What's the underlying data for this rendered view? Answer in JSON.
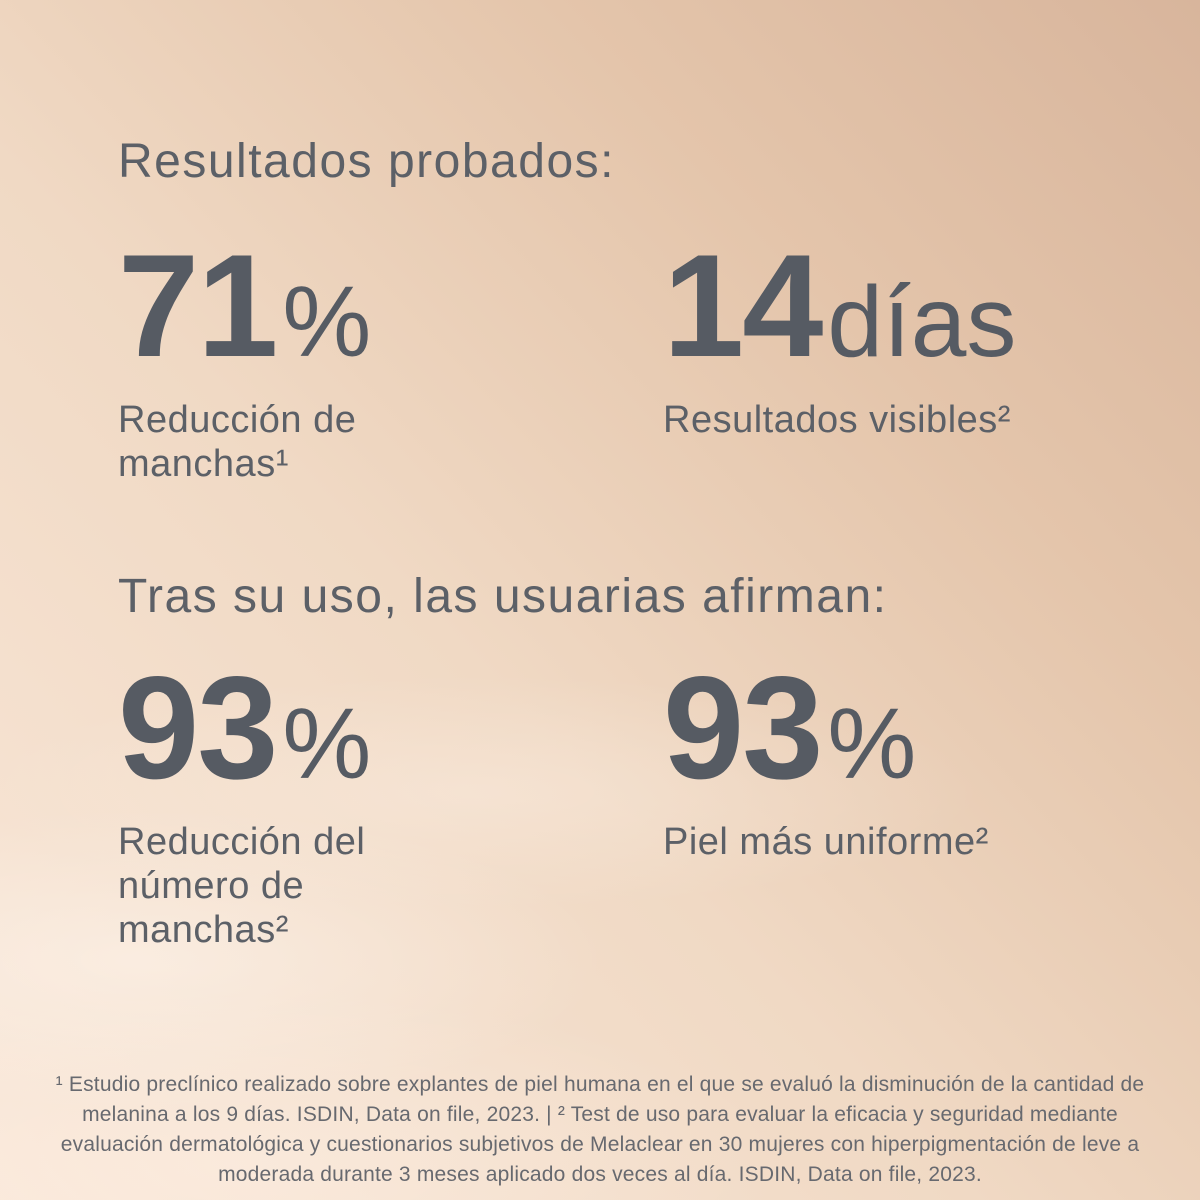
{
  "colors": {
    "text_primary": "#575c64",
    "text_footnote": "#67696f",
    "bg_gradient_dark": "#d8b59c",
    "bg_gradient_light": "#f9e7d8"
  },
  "section_proven": {
    "heading": "Resultados probados:",
    "stats": [
      {
        "value": "71",
        "unit": "%",
        "label": "Reducción de\nmanchas¹"
      },
      {
        "value": "14",
        "unit": "días",
        "label": "Resultados visibles²"
      }
    ]
  },
  "section_users": {
    "heading": "Tras su uso, las usuarias afirman:",
    "stats": [
      {
        "value": "93",
        "unit": "%",
        "label": "Reducción del\nnúmero de\nmanchas²"
      },
      {
        "value": "93",
        "unit": "%",
        "label": "Piel más uniforme²"
      }
    ]
  },
  "footnote": "¹ Estudio preclínico realizado sobre explantes de piel humana en el que se evaluó la disminución de la cantidad de melanina a los 9 días. ISDIN, Data on file, 2023. | ² Test de uso para evaluar la eficacia y seguridad mediante evaluación dermatológica y cuestionarios subjetivos de Melaclear en 30 mujeres con hiperpigmentación de leve a moderada durante 3 meses aplicado dos veces al día. ISDIN, Data on file, 2023."
}
